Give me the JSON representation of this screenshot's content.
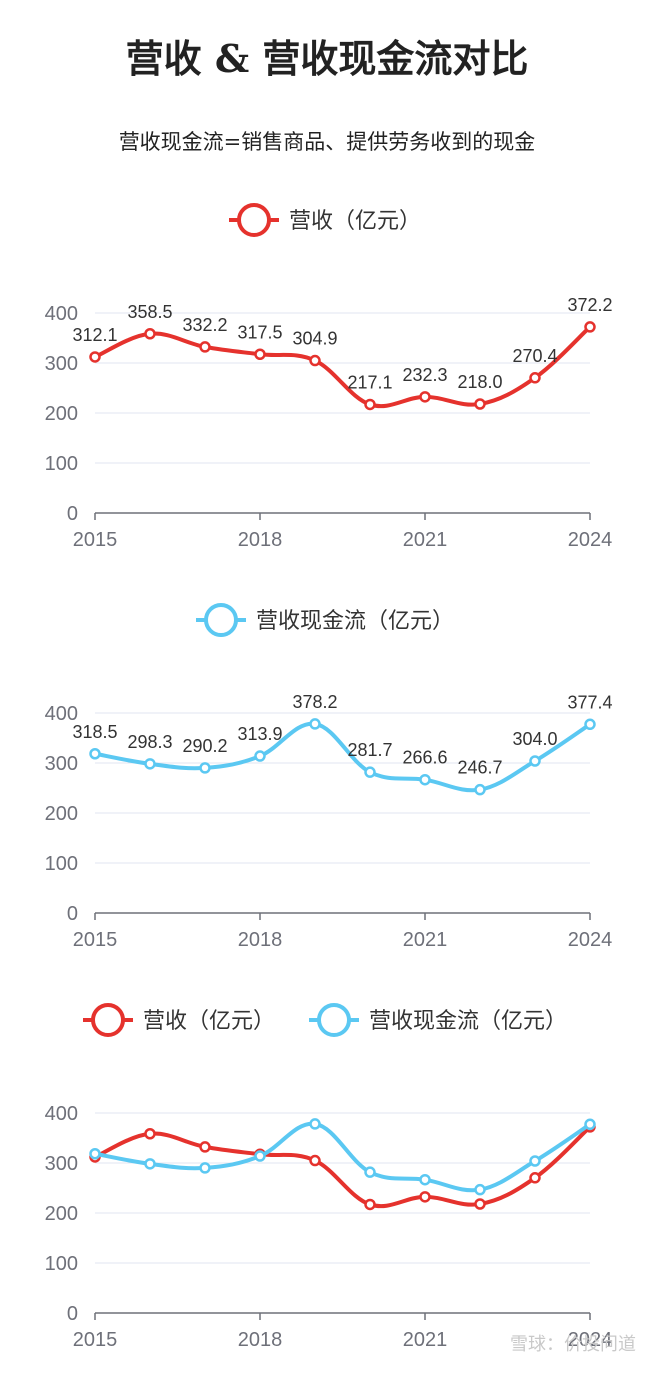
{
  "title": "营收 & 营收现金流对比",
  "subtitle": "营收现金流=销售商品、提供劳务收到的现金",
  "watermark": "雪球：价投问道",
  "colors": {
    "revenue": "#e5322d",
    "cashflow": "#5bc8f2",
    "grid": "#e0e6f1",
    "axis": "#6e7079"
  },
  "chart_data": [
    {
      "type": "line",
      "x": [
        2015,
        2016,
        2017,
        2018,
        2019,
        2020,
        2021,
        2022,
        2023,
        2024
      ],
      "xticks": [
        "2015",
        "2018",
        "2021",
        "2024"
      ],
      "yticks": [
        "0",
        "100",
        "200",
        "300",
        "400"
      ],
      "ylim": [
        0,
        400
      ],
      "series": [
        {
          "name": "营收（亿元）",
          "values": [
            312.1,
            358.5,
            332.2,
            317.5,
            304.9,
            217.1,
            232.3,
            218.0,
            270.4,
            372.2
          ],
          "labels": [
            "312.1",
            "358.5",
            "332.2",
            "317.5",
            "304.9",
            "217.1",
            "232.3",
            "218.0",
            "270.4",
            "372.2"
          ],
          "color": "#e5322d"
        }
      ],
      "legend": "top-center",
      "grid": true
    },
    {
      "type": "line",
      "x": [
        2015,
        2016,
        2017,
        2018,
        2019,
        2020,
        2021,
        2022,
        2023,
        2024
      ],
      "xticks": [
        "2015",
        "2018",
        "2021",
        "2024"
      ],
      "yticks": [
        "0",
        "100",
        "200",
        "300",
        "400"
      ],
      "ylim": [
        0,
        400
      ],
      "series": [
        {
          "name": "营收现金流（亿元）",
          "values": [
            318.5,
            298.3,
            290.2,
            313.9,
            378.2,
            281.7,
            266.6,
            246.7,
            304.0,
            377.4
          ],
          "labels": [
            "318.5",
            "298.3",
            "290.2",
            "313.9",
            "378.2",
            "281.7",
            "266.6",
            "246.7",
            "304.0",
            "377.4"
          ],
          "color": "#5bc8f2"
        }
      ],
      "legend": "top-center",
      "grid": true
    },
    {
      "type": "line",
      "x": [
        2015,
        2016,
        2017,
        2018,
        2019,
        2020,
        2021,
        2022,
        2023,
        2024
      ],
      "xticks": [
        "2015",
        "2018",
        "2021",
        "2024"
      ],
      "yticks": [
        "0",
        "100",
        "200",
        "300",
        "400"
      ],
      "ylim": [
        0,
        400
      ],
      "series": [
        {
          "name": "营收（亿元）",
          "values": [
            312.1,
            358.5,
            332.2,
            317.5,
            304.9,
            217.1,
            232.3,
            218.0,
            270.4,
            372.2
          ],
          "color": "#e5322d"
        },
        {
          "name": "营收现金流（亿元）",
          "values": [
            318.5,
            298.3,
            290.2,
            313.9,
            378.2,
            281.7,
            266.6,
            246.7,
            304.0,
            377.4
          ],
          "color": "#5bc8f2"
        }
      ],
      "legend": "top-center",
      "grid": true
    }
  ]
}
